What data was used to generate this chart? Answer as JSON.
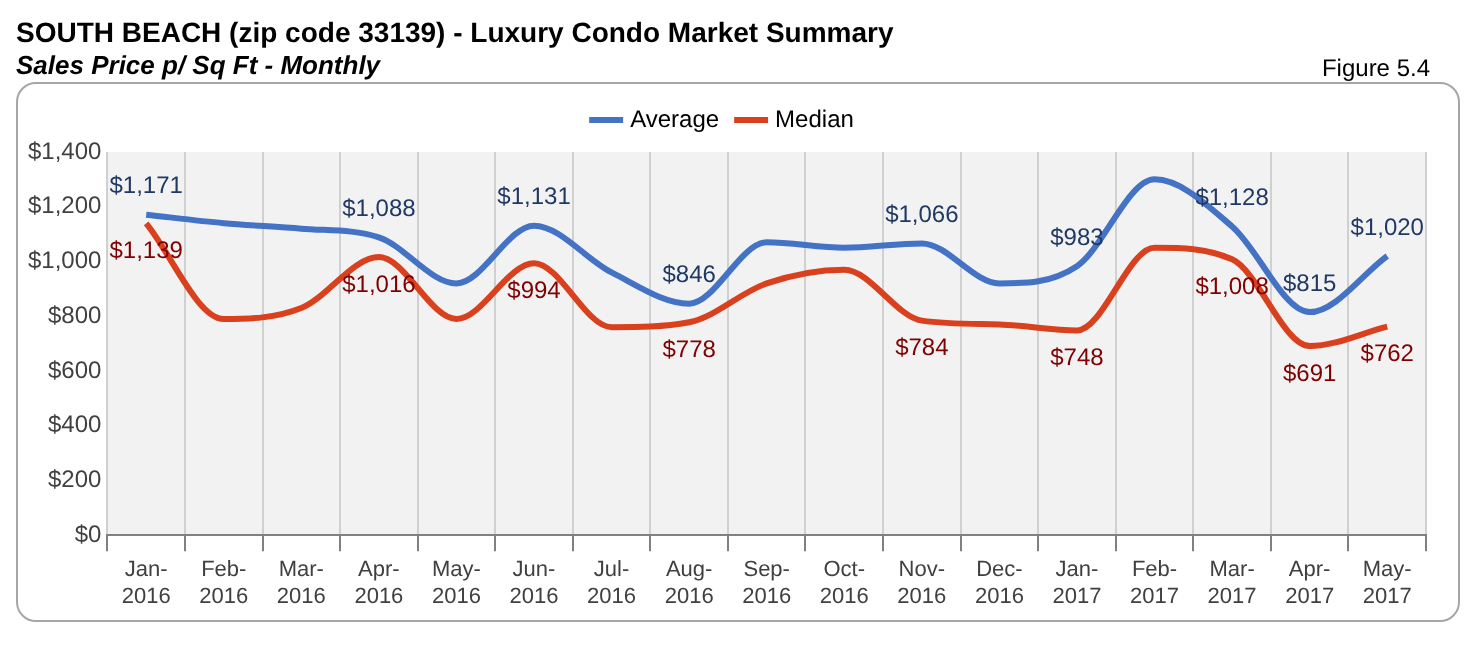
{
  "chart_data": {
    "type": "line",
    "title": "SOUTH BEACH (zip code 33139) - Luxury Condo Market Summary",
    "subtitle": "Sales Price  p/ Sq Ft - Monthly",
    "annotations": [
      "Figure 5.4"
    ],
    "categories": [
      "Jan-2016",
      "Feb-2016",
      "Mar-2016",
      "Apr-2016",
      "May-2016",
      "Jun-2016",
      "Jul-2016",
      "Aug-2016",
      "Sep-2016",
      "Oct-2016",
      "Nov-2016",
      "Dec-2016",
      "Jan-2017",
      "Feb-2017",
      "Mar-2017",
      "Apr-2017",
      "May-2017"
    ],
    "series": [
      {
        "name": "Average",
        "color": "#4472c4",
        "values": [
          1171,
          1140,
          1120,
          1088,
          920,
          1131,
          960,
          846,
          1070,
          1050,
          1066,
          920,
          983,
          1300,
          1128,
          815,
          1020
        ],
        "value_labels": [
          "$1,171",
          null,
          null,
          "$1,088",
          null,
          "$1,131",
          null,
          "$846",
          null,
          null,
          "$1,066",
          null,
          "$983",
          null,
          "$1,128",
          "$815",
          "$1,020"
        ]
      },
      {
        "name": "Median",
        "color": "#d9411e",
        "values": [
          1139,
          790,
          830,
          1016,
          790,
          994,
          760,
          778,
          920,
          970,
          784,
          770,
          748,
          1050,
          1008,
          691,
          762
        ],
        "value_labels": [
          "$1,139",
          null,
          null,
          "$1,016",
          null,
          "$994",
          null,
          "$778",
          null,
          null,
          "$784",
          null,
          "$748",
          null,
          "$1,008",
          "$691",
          "$762"
        ]
      }
    ],
    "ylim": [
      0,
      1400
    ],
    "yticks": [
      {
        "value": 0,
        "label": "$0"
      },
      {
        "value": 200,
        "label": "$200"
      },
      {
        "value": 400,
        "label": "$400"
      },
      {
        "value": 600,
        "label": "$600"
      },
      {
        "value": 800,
        "label": "$800"
      },
      {
        "value": 1000,
        "label": "$1,000"
      },
      {
        "value": 1200,
        "label": "$1,200"
      },
      {
        "value": 1400,
        "label": "$1,400"
      }
    ],
    "grid": "x",
    "legend": "top",
    "marker": "none",
    "line_style": "solid"
  }
}
